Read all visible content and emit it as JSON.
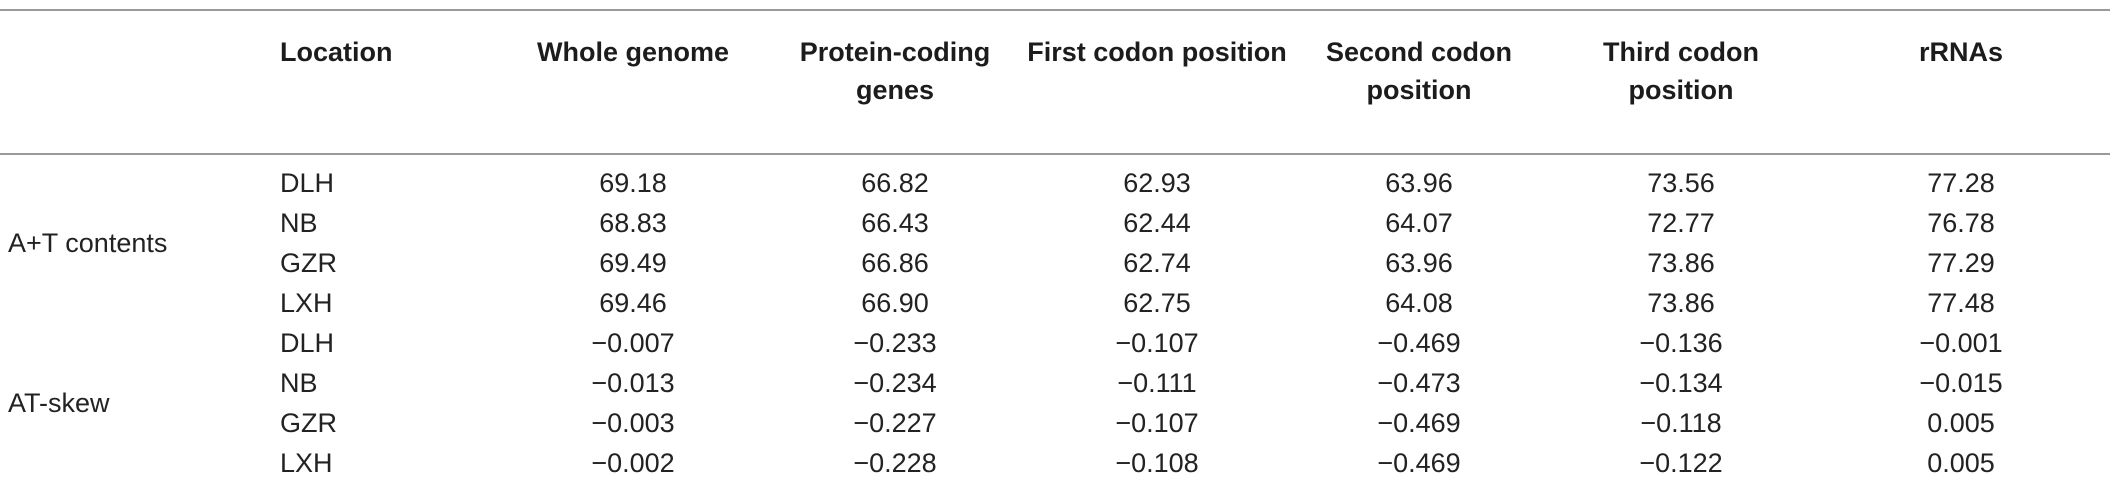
{
  "table": {
    "headers": [
      "",
      "Location",
      "Whole genome",
      "Protein-coding genes",
      "First codon position",
      "Second codon position",
      "Third codon position",
      "rRNAs"
    ],
    "groups": [
      {
        "label": "A+T contents",
        "rows": [
          [
            "DLH",
            "69.18",
            "66.82",
            "62.93",
            "63.96",
            "73.56",
            "77.28"
          ],
          [
            "NB",
            "68.83",
            "66.43",
            "62.44",
            "64.07",
            "72.77",
            "76.78"
          ],
          [
            "GZR",
            "69.49",
            "66.86",
            "62.74",
            "63.96",
            "73.86",
            "77.29"
          ],
          [
            "LXH",
            "69.46",
            "66.90",
            "62.75",
            "64.08",
            "73.86",
            "77.48"
          ]
        ]
      },
      {
        "label": "AT-skew",
        "rows": [
          [
            "DLH",
            "−0.007",
            "−0.233",
            "−0.107",
            "−0.469",
            "−0.136",
            "−0.001"
          ],
          [
            "NB",
            "−0.013",
            "−0.234",
            "−0.111",
            "−0.473",
            "−0.134",
            "−0.015"
          ],
          [
            "GZR",
            "−0.003",
            "−0.227",
            "−0.107",
            "−0.469",
            "−0.118",
            "0.005"
          ],
          [
            "LXH",
            "−0.002",
            "−0.228",
            "−0.108",
            "−0.469",
            "−0.122",
            "0.005"
          ]
        ]
      }
    ]
  }
}
